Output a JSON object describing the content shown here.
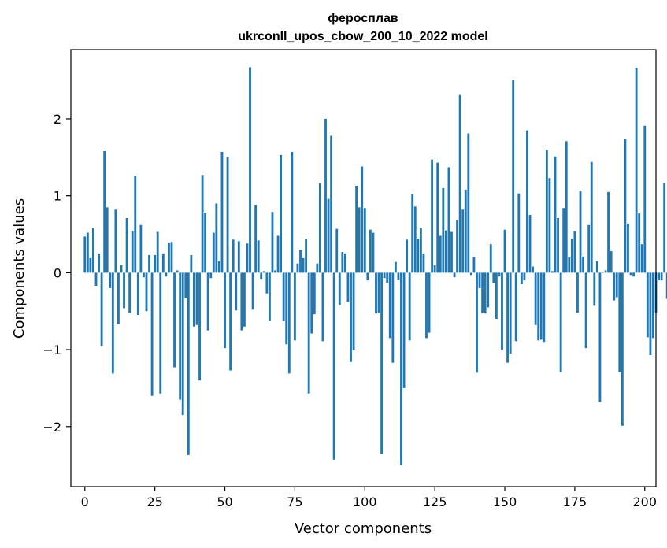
{
  "chart_data": {
    "type": "bar",
    "title": "феросплав",
    "subtitle": "ukrconll_upos_cbow_200_10_2022 model",
    "xlabel": "Vector components",
    "ylabel": "Components values",
    "xlim": [
      -5,
      204
    ],
    "ylim": [
      -2.78,
      2.9
    ],
    "xticks": [
      0,
      25,
      50,
      75,
      100,
      125,
      150,
      175,
      200
    ],
    "yticks": [
      -2,
      -1,
      0,
      1,
      2
    ],
    "xtick_labels": [
      "0",
      "25",
      "50",
      "75",
      "100",
      "125",
      "150",
      "175",
      "200"
    ],
    "ytick_labels": [
      "−2",
      "−1",
      "0",
      "1",
      "2"
    ],
    "grid": false,
    "bar_color": "#1f77b4",
    "values": [
      0.47,
      0.52,
      0.19,
      0.58,
      -0.17,
      0.25,
      -0.96,
      1.58,
      0.85,
      -0.2,
      -1.31,
      0.82,
      -0.67,
      0.1,
      -0.46,
      0.71,
      -0.52,
      0.54,
      1.26,
      -0.55,
      0.62,
      -0.06,
      -0.5,
      0.23,
      -1.6,
      0.23,
      0.53,
      -1.57,
      0.25,
      -0.05,
      0.39,
      0.4,
      -1.23,
      0.03,
      -1.65,
      -1.85,
      -0.33,
      -2.37,
      0.23,
      -0.7,
      -0.68,
      -1.4,
      1.27,
      0.78,
      -0.75,
      -0.07,
      0.52,
      0.9,
      0.15,
      1.57,
      -0.98,
      1.5,
      -1.27,
      0.43,
      -0.49,
      0.41,
      -0.75,
      -0.7,
      0.38,
      2.67,
      -0.48,
      0.88,
      0.42,
      -0.08,
      0.02,
      -0.27,
      -0.63,
      0.79,
      0.03,
      0.48,
      1.53,
      -0.63,
      -0.93,
      -1.31,
      1.57,
      -0.88,
      0.12,
      0.3,
      0.19,
      0.44,
      -1.57,
      -0.79,
      -0.54,
      0.12,
      1.16,
      -0.89,
      2.0,
      0.96,
      1.78,
      -2.43,
      0.57,
      -0.42,
      0.27,
      0.25,
      -0.38,
      -1.16,
      -1.0,
      1.13,
      0.85,
      1.38,
      0.84,
      -0.1,
      0.56,
      0.52,
      -0.53,
      -0.52,
      -2.35,
      -0.07,
      -0.13,
      -0.85,
      -1.17,
      0.14,
      -0.09,
      -2.5,
      -1.5,
      0.43,
      -0.88,
      1.02,
      0.86,
      0.44,
      0.58,
      0.25,
      -0.85,
      -0.78,
      1.47,
      0.1,
      1.43,
      0.48,
      1.1,
      0.55,
      1.37,
      0.53,
      -0.06,
      0.68,
      2.31,
      0.82,
      1.08,
      1.81,
      -0.03,
      0.2,
      -1.3,
      -0.2,
      -0.52,
      -0.53,
      -0.45,
      0.37,
      -0.14,
      -0.6,
      -0.05,
      -1.0,
      0.56,
      -1.17,
      -1.05,
      2.5,
      -0.89,
      1.03,
      -0.15,
      -0.1,
      1.85,
      0.75,
      0.08,
      -0.68,
      -0.88,
      -0.87,
      -0.9,
      1.6,
      1.23,
      0.02,
      1.51,
      0.71,
      -1.29,
      0.84,
      1.71,
      0.2,
      0.44,
      0.54,
      -0.52,
      1.06,
      0.21,
      -0.98,
      0.62,
      1.44,
      -0.43,
      0.15,
      -1.68,
      0.01,
      0.03,
      1.05,
      0.28,
      -0.36,
      -0.32,
      -1.29,
      -1.99,
      1.74,
      0.64,
      -0.03,
      -0.05,
      2.66,
      0.77,
      0.37,
      1.91,
      -0.84,
      -1.07,
      -0.85,
      -0.52,
      -0.1,
      -0.1,
      1.17,
      -0.34
    ]
  }
}
